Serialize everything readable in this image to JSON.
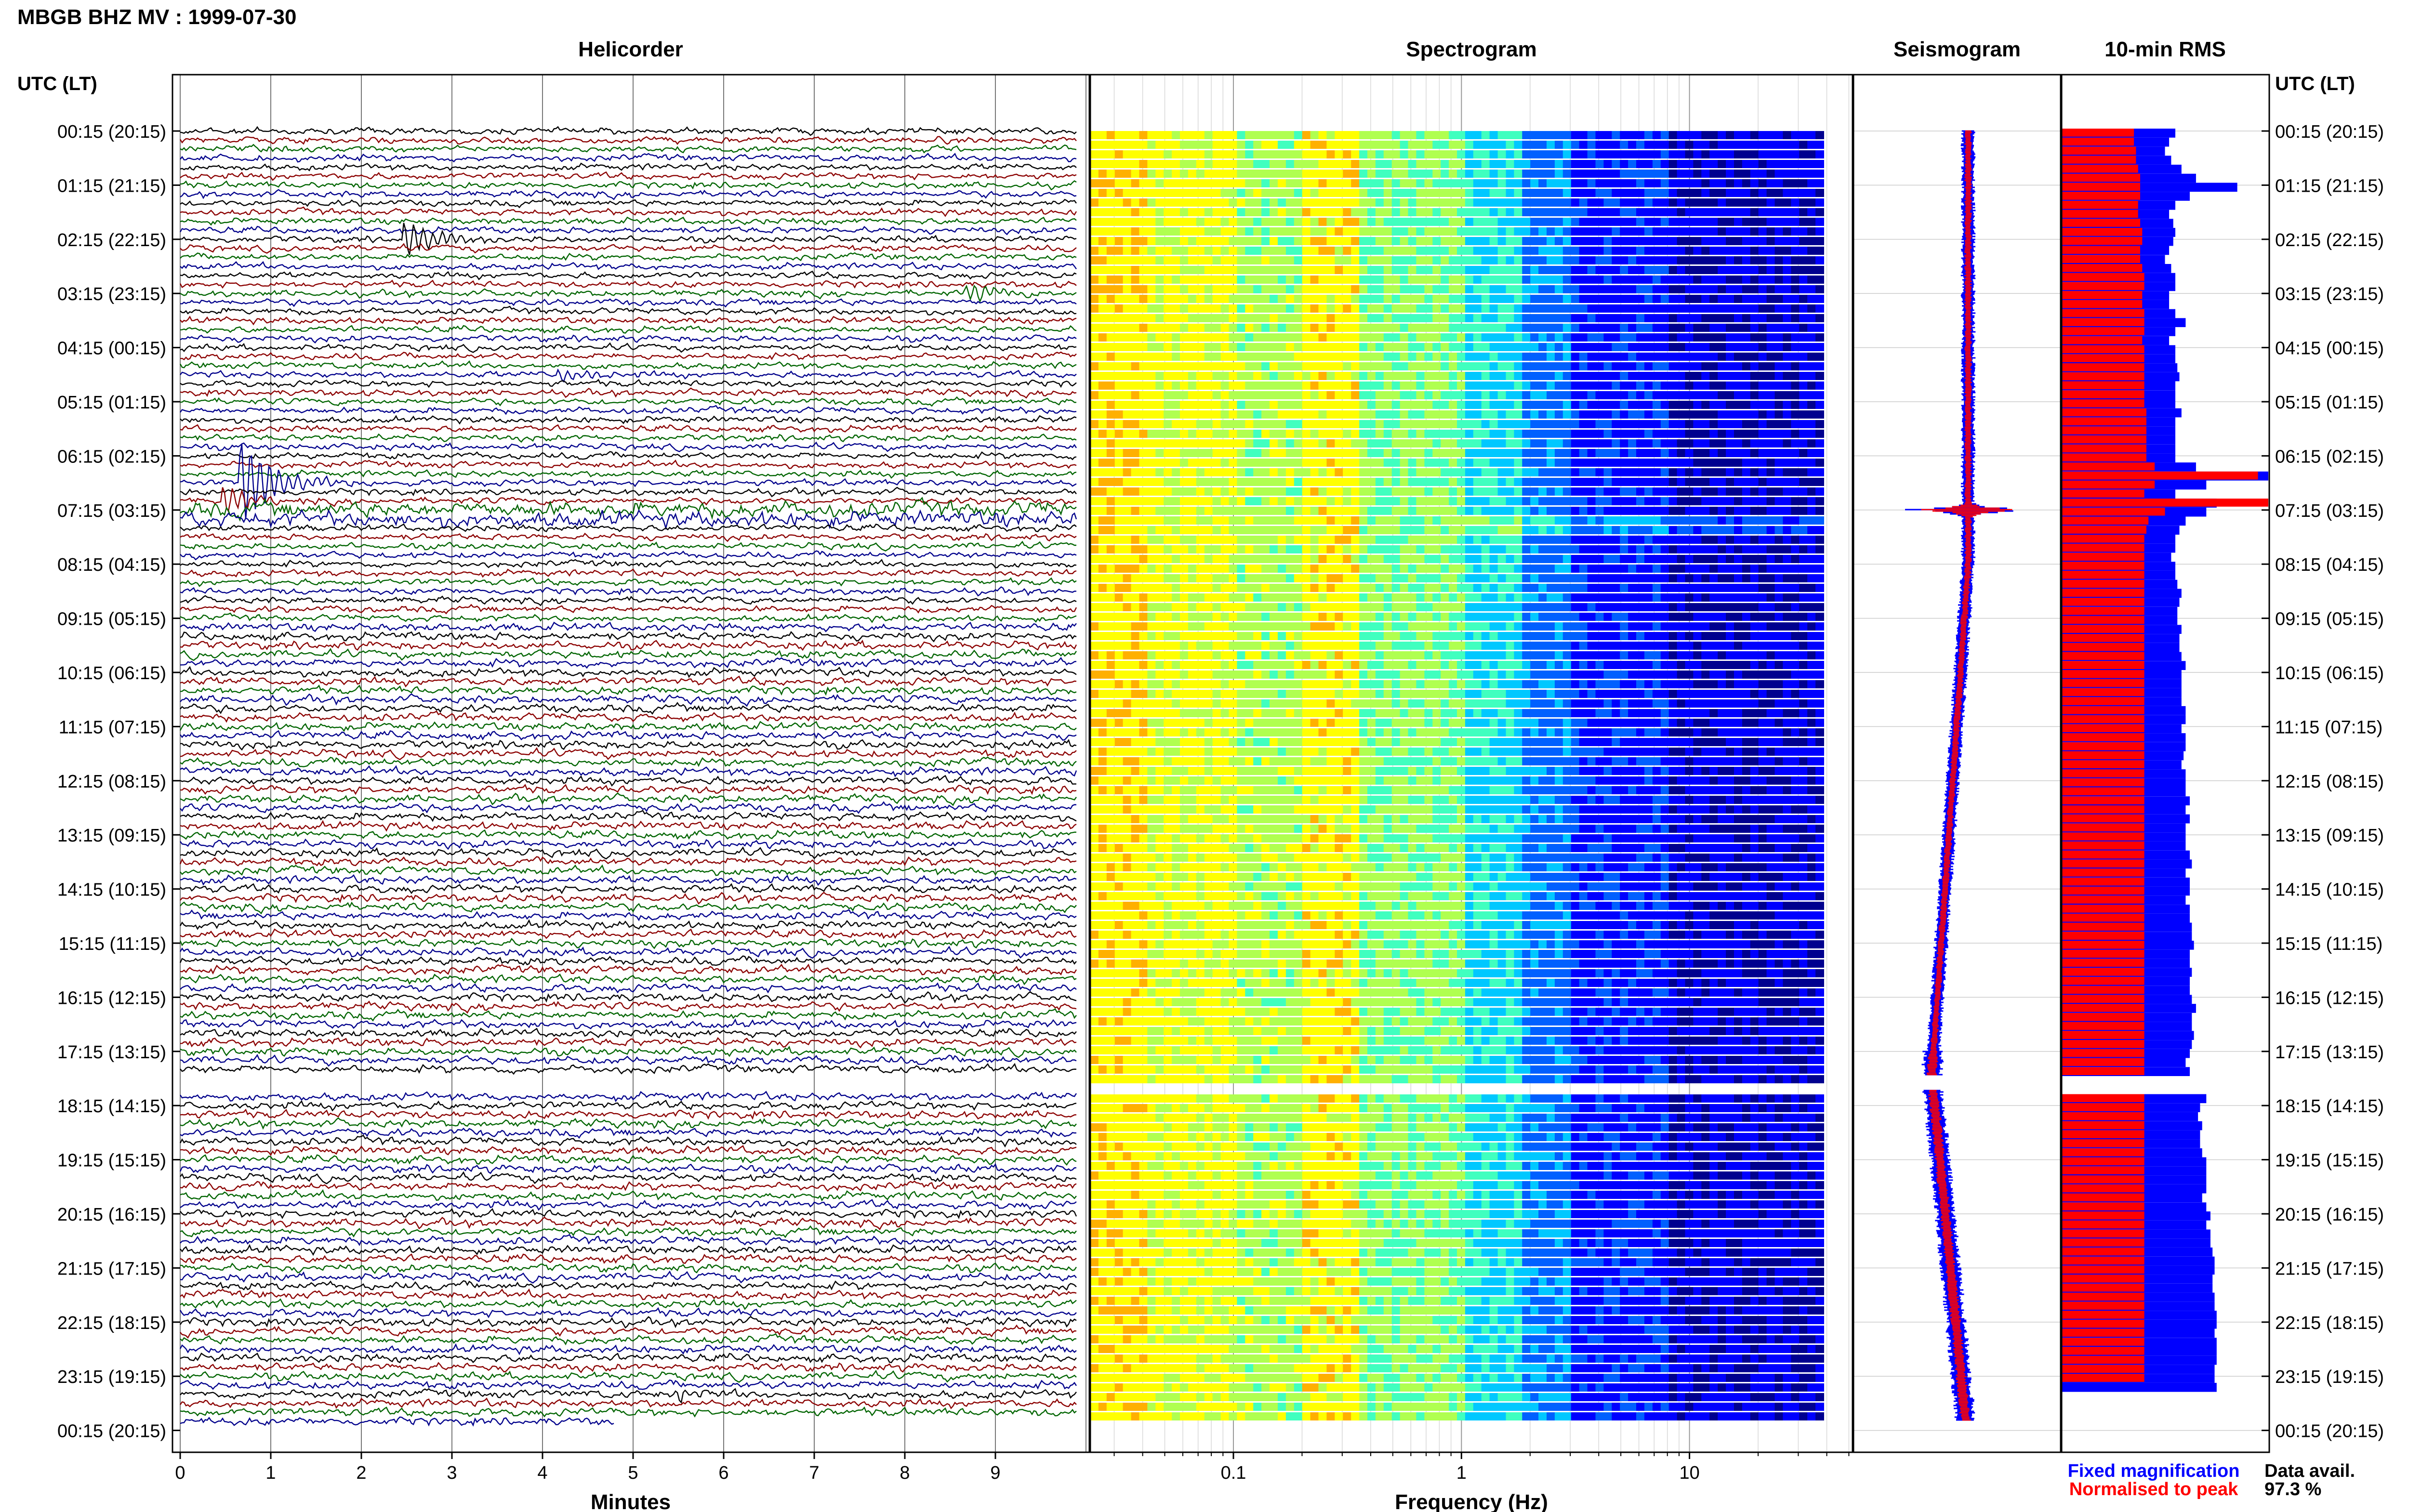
{
  "header": {
    "station_title": "MBGB BHZ MV : 1999-07-30"
  },
  "panels": {
    "helicorder_title": "Helicorder",
    "spectrogram_title": "Spectrogram",
    "seismogram_title": "Seismogram",
    "rms_title": "10-min RMS"
  },
  "axes": {
    "left_time_label": "UTC (LT)",
    "right_time_label": "UTC (LT)",
    "helicorder_xlabel": "Minutes",
    "spectrogram_xlabel": "Frequency (Hz)"
  },
  "legend": {
    "fixed": "Fixed magnification",
    "normalised": "Normalised to peak"
  },
  "availability": {
    "label": "Data avail.",
    "value": "97.3 %"
  },
  "colors": {
    "trace_cycle": [
      "#000000",
      "#8b0000",
      "#006400",
      "#00008b"
    ],
    "fixed_magnification": "#0000ff",
    "normalised_to_peak": "#ff0000",
    "spectrogram_colormap": [
      "#00008f",
      "#0000ff",
      "#0060ff",
      "#00c8ff",
      "#40ffbf",
      "#b0ff50",
      "#ffff00",
      "#ffb000"
    ]
  },
  "chart_data": [
    {
      "type": "line",
      "panel": "helicorder",
      "title": "Helicorder",
      "xlabel": "Minutes",
      "xlim": [
        0,
        10
      ],
      "x_ticks": [
        0,
        1,
        2,
        3,
        4,
        5,
        6,
        7,
        8,
        9
      ],
      "y_tick_labels": [
        "00:15 (20:15)",
        "01:15 (21:15)",
        "02:15 (22:15)",
        "03:15 (23:15)",
        "04:15 (00:15)",
        "05:15 (01:15)",
        "06:15 (02:15)",
        "07:15 (03:15)",
        "08:15 (04:15)",
        "09:15 (05:15)",
        "10:15 (06:15)",
        "11:15 (07:15)",
        "12:15 (08:15)",
        "13:15 (09:15)",
        "14:15 (10:15)",
        "15:15 (11:15)",
        "16:15 (12:15)",
        "17:15 (13:15)",
        "18:15 (14:15)",
        "19:15 (15:15)",
        "20:15 (16:15)",
        "21:15 (17:15)",
        "22:15 (18:15)",
        "23:15 (19:15)",
        "00:15 (20:15)"
      ],
      "lines_per_hour": 6,
      "data_gap_hour": 17.5,
      "events": [
        {
          "time": "02:15",
          "minute": 2.5,
          "amplitude": 4,
          "color": "#000000"
        },
        {
          "time": "03:15",
          "minute": 8.7,
          "amplitude": 2,
          "color": "#00008b"
        },
        {
          "time": "04:45",
          "minute": 4.2,
          "amplitude": 1.5,
          "color": "#000000"
        },
        {
          "time": "06:45",
          "minute": 0.7,
          "amplitude": 9,
          "color": "#006400"
        },
        {
          "time": "07:05",
          "minute": 0.5,
          "amplitude": 3,
          "color": "#00008b"
        },
        {
          "time": "23:35",
          "minute": 5.5,
          "amplitude": 1.5,
          "color": "#8b0000"
        }
      ],
      "grid": true
    },
    {
      "type": "heatmap",
      "panel": "spectrogram",
      "title": "Spectrogram",
      "xlabel": "Frequency (Hz)",
      "x_scale": "log",
      "xlim": [
        0.02,
        40
      ],
      "x_ticks": [
        0.1,
        1,
        10
      ],
      "data_gap_hour": 17.5
    },
    {
      "type": "line",
      "panel": "seismogram",
      "title": "Seismogram",
      "series": [
        {
          "name": "Fixed magnification",
          "color": "#0000ff"
        },
        {
          "name": "Normalised to peak",
          "color": "#ff0000"
        }
      ],
      "peak_time": "07:15"
    },
    {
      "type": "bar",
      "panel": "rms",
      "title": "10-min RMS",
      "series": [
        {
          "name": "Fixed magnification",
          "color": "#0000ff",
          "values": [
            0.55,
            0.52,
            0.5,
            0.53,
            0.58,
            0.65,
            0.85,
            0.62,
            0.55,
            0.52,
            0.54,
            0.55,
            0.54,
            0.52,
            0.5,
            0.53,
            0.55,
            0.55,
            0.52,
            0.52,
            0.55,
            0.6,
            0.55,
            0.52,
            0.55,
            0.55,
            0.56,
            0.57,
            0.55,
            0.55,
            0.55,
            0.58,
            0.55,
            0.55,
            0.55,
            0.55,
            0.55,
            0.65,
            1.0,
            0.7,
            0.55,
            0.75,
            0.7,
            0.6,
            0.57,
            0.55,
            0.55,
            0.53,
            0.55,
            0.55,
            0.56,
            0.58,
            0.57,
            0.56,
            0.56,
            0.58,
            0.57,
            0.57,
            0.58,
            0.6,
            0.58,
            0.58,
            0.58,
            0.58,
            0.6,
            0.6,
            0.58,
            0.6,
            0.6,
            0.59,
            0.58,
            0.6,
            0.6,
            0.6,
            0.62,
            0.6,
            0.62,
            0.6,
            0.6,
            0.6,
            0.62,
            0.63,
            0.6,
            0.62,
            0.62,
            0.6,
            0.62,
            0.62,
            0.63,
            0.63,
            0.64,
            0.62,
            0.62,
            0.63,
            0.62,
            0.62,
            0.63,
            0.65,
            0.63,
            0.63,
            0.64,
            0.63,
            0.62,
            0.6,
            0.62,
            0.66,
            0.68,
            0.7,
            0.67,
            0.66,
            0.68,
            0.67,
            0.67,
            0.68,
            0.7,
            0.7,
            0.7,
            0.7,
            0.68,
            0.7,
            0.72,
            0.7,
            0.72,
            0.72,
            0.73,
            0.74,
            0.74,
            0.73,
            0.73,
            0.74,
            0.74,
            0.75,
            0.75,
            0.74,
            0.75,
            0.75,
            0.75,
            0.74,
            0.74,
            0.75
          ]
        },
        {
          "name": "Normalised to peak",
          "color": "#ff0000",
          "values": [
            0.35,
            0.35,
            0.36,
            0.36,
            0.37,
            0.38,
            0.38,
            0.38,
            0.37,
            0.37,
            0.38,
            0.39,
            0.39,
            0.38,
            0.38,
            0.39,
            0.4,
            0.4,
            0.39,
            0.39,
            0.4,
            0.4,
            0.4,
            0.39,
            0.4,
            0.4,
            0.4,
            0.4,
            0.4,
            0.4,
            0.4,
            0.41,
            0.41,
            0.41,
            0.41,
            0.41,
            0.41,
            0.45,
            0.95,
            0.45,
            0.4,
            1.0,
            0.5,
            0.42,
            0.41,
            0.4,
            0.4,
            0.4,
            0.4,
            0.4,
            0.4,
            0.4,
            0.4,
            0.4,
            0.4,
            0.4,
            0.4,
            0.4,
            0.4,
            0.4,
            0.4,
            0.4,
            0.4,
            0.4,
            0.4,
            0.4,
            0.4,
            0.4,
            0.4,
            0.4,
            0.4,
            0.4,
            0.4,
            0.4,
            0.4,
            0.4,
            0.4,
            0.4,
            0.4,
            0.4,
            0.4,
            0.4,
            0.4,
            0.4,
            0.4,
            0.4,
            0.4,
            0.4,
            0.4,
            0.4,
            0.4,
            0.4,
            0.4,
            0.4,
            0.4,
            0.4,
            0.4,
            0.4,
            0.4,
            0.4,
            0.4,
            0.4,
            0.4,
            0.4,
            0.4,
            0.4,
            0.4,
            0.4,
            0.4,
            0.4,
            0.4,
            0.4,
            0.4,
            0.4,
            0.4,
            0.4,
            0.4,
            0.4,
            0.4,
            0.4,
            0.4,
            0.4,
            0.4,
            0.4,
            0.4,
            0.4,
            0.4,
            0.4,
            0.4,
            0.4,
            0.4,
            0.4,
            0.4,
            0.4,
            0.4,
            0.4,
            0.4,
            0.4,
            0.4
          ]
        }
      ],
      "data_gap_hour": 17.5
    }
  ]
}
